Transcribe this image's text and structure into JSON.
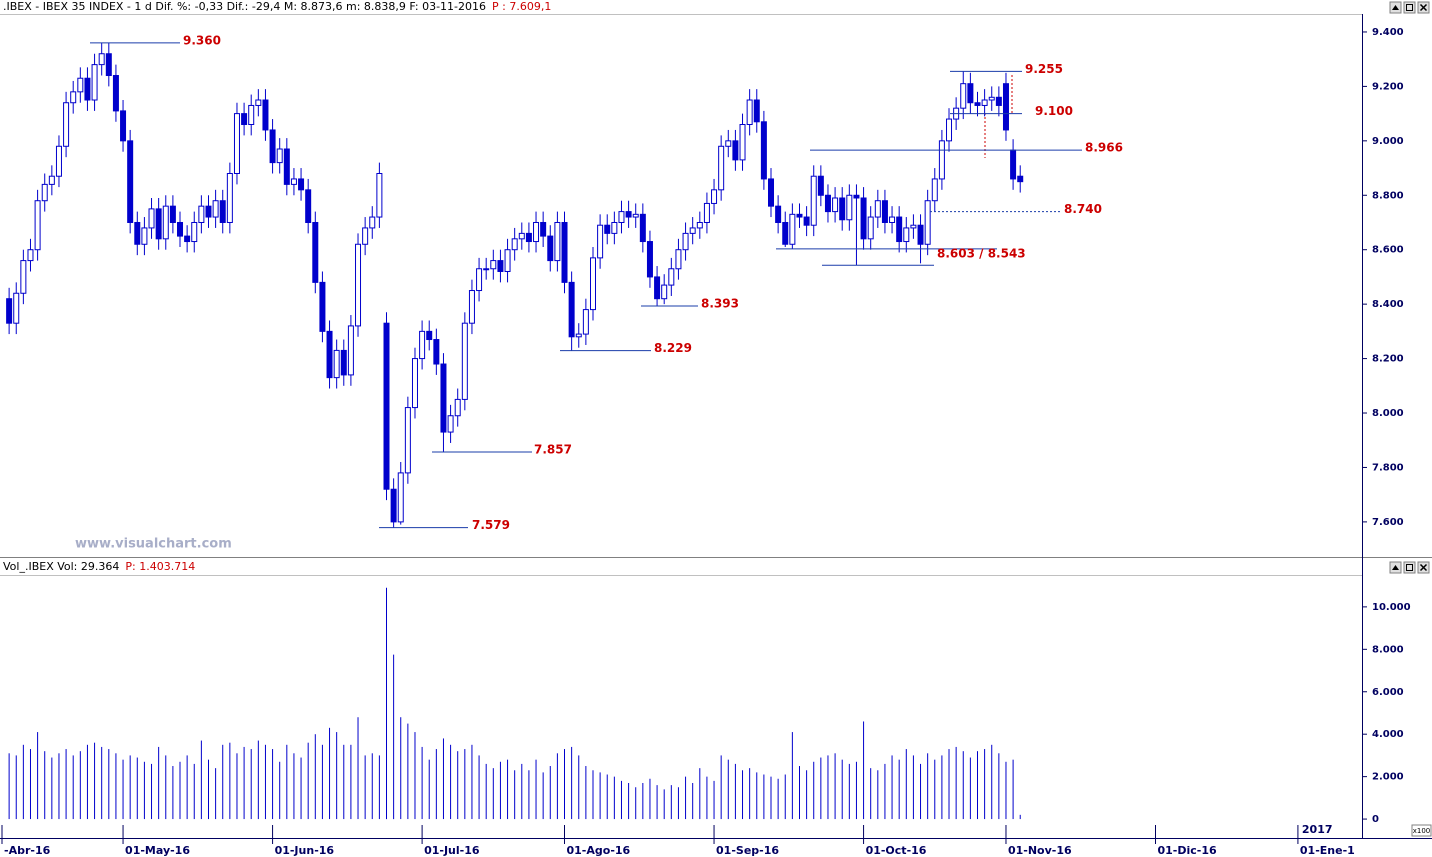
{
  "chart_data": [
    {
      "type": "candlestick",
      "title": ".IBEX - IBEX 35 INDEX - 1 d Dif. %: -0,33 Dif.: -29,4 M: 8.873,6 m: 8.838,9 F: 03-11-2016",
      "title_note": "P : 7.609,1",
      "watermark": "www.visualchart.com",
      "color": "#0000cc",
      "xlim": [
        -1,
        190
      ],
      "ylim": [
        7471,
        9466
      ],
      "yticks": [
        {
          "value": 7600,
          "label": "7.600"
        },
        {
          "value": 7800,
          "label": "7.800"
        },
        {
          "value": 8000,
          "label": "8.000"
        },
        {
          "value": 8200,
          "label": "8.200"
        },
        {
          "value": 8400,
          "label": "8.400"
        },
        {
          "value": 8600,
          "label": "8.600"
        },
        {
          "value": 8800,
          "label": "8.800"
        },
        {
          "value": 9000,
          "label": "9.000"
        },
        {
          "value": 9200,
          "label": "9.200"
        },
        {
          "value": 9400,
          "label": "9.400"
        }
      ],
      "open": [
        8420,
        8330,
        8440,
        8560,
        8600,
        8780,
        8840,
        8870,
        8980,
        9140,
        9180,
        9230,
        9150,
        9280,
        9320,
        9240,
        9110,
        9000,
        8700,
        8620,
        8680,
        8750,
        8640,
        8760,
        8700,
        8650,
        8630,
        8700,
        8760,
        8720,
        8780,
        8700,
        8880,
        9100,
        9060,
        9130,
        9150,
        9040,
        8920,
        8970,
        8840,
        8860,
        8820,
        8700,
        8480,
        8300,
        8130,
        8230,
        8140,
        8320,
        8620,
        8680,
        8720,
        8330,
        7720,
        7600,
        7780,
        8020,
        8200,
        8300,
        8270,
        8180,
        7930,
        7990,
        8050,
        8330,
        8450,
        8530,
        8530,
        8560,
        8520,
        8600,
        8640,
        8660,
        8630,
        8700,
        8650,
        8560,
        8700,
        8480,
        8280,
        8290,
        8380,
        8570,
        8690,
        8660,
        8700,
        8740,
        8720,
        8730,
        8630,
        8500,
        8420,
        8470,
        8530,
        8600,
        8660,
        8680,
        8700,
        8770,
        8820,
        8980,
        9000,
        8930,
        9060,
        9150,
        9070,
        8860,
        8760,
        8700,
        8620,
        8730,
        8720,
        8690,
        8870,
        8800,
        8740,
        8790,
        8710,
        8800,
        8790,
        8640,
        8720,
        8780,
        8700,
        8720,
        8630,
        8680,
        8690,
        8620,
        8780,
        8860,
        9000,
        9080,
        9120,
        9210,
        9140,
        9130,
        9150,
        9160,
        9210,
        8966,
        8870
      ],
      "high": [
        8460,
        8480,
        8600,
        8640,
        8820,
        8880,
        8910,
        9020,
        9180,
        9220,
        9270,
        9270,
        9320,
        9360,
        9360,
        9280,
        9150,
        9040,
        8740,
        8720,
        8790,
        8790,
        8800,
        8800,
        8740,
        8690,
        8740,
        8800,
        8800,
        8820,
        8820,
        8920,
        9140,
        9140,
        9170,
        9190,
        9190,
        9080,
        9010,
        9010,
        8900,
        8900,
        8860,
        8740,
        8520,
        8340,
        8270,
        8270,
        8360,
        8660,
        8720,
        8760,
        8920,
        8370,
        7760,
        7820,
        8060,
        8240,
        8340,
        8340,
        8310,
        8220,
        8030,
        8090,
        8370,
        8490,
        8570,
        8570,
        8600,
        8600,
        8640,
        8680,
        8700,
        8700,
        8740,
        8740,
        8690,
        8740,
        8740,
        8520,
        8330,
        8420,
        8610,
        8730,
        8730,
        8740,
        8780,
        8780,
        8770,
        8770,
        8670,
        8540,
        8510,
        8570,
        8640,
        8700,
        8720,
        8740,
        8810,
        8860,
        9020,
        9040,
        9040,
        9100,
        9190,
        9190,
        9110,
        8900,
        8800,
        8740,
        8770,
        8770,
        8760,
        8910,
        8910,
        8840,
        8830,
        8830,
        8840,
        8840,
        8830,
        8760,
        8820,
        8820,
        8760,
        8760,
        8720,
        8730,
        8730,
        8820,
        8900,
        9040,
        9120,
        9160,
        9255,
        9250,
        9180,
        9190,
        9200,
        9200,
        9250,
        9006,
        8910
      ],
      "low": [
        8290,
        8290,
        8400,
        8520,
        8560,
        8740,
        8800,
        8830,
        8940,
        9100,
        9140,
        9110,
        9110,
        9240,
        9200,
        9070,
        8960,
        8660,
        8580,
        8580,
        8640,
        8600,
        8600,
        8660,
        8610,
        8590,
        8590,
        8660,
        8680,
        8680,
        8660,
        8660,
        8840,
        9020,
        9020,
        9090,
        9000,
        8880,
        8880,
        8800,
        8800,
        8780,
        8660,
        8440,
        8260,
        8090,
        8090,
        8100,
        8100,
        8280,
        8580,
        8640,
        8680,
        7680,
        7579,
        7590,
        7740,
        7980,
        8160,
        8230,
        8140,
        7857,
        7890,
        7950,
        8010,
        8290,
        8410,
        8490,
        8490,
        8480,
        8480,
        8560,
        8600,
        8590,
        8590,
        8610,
        8520,
        8520,
        8440,
        8229,
        8240,
        8250,
        8340,
        8530,
        8620,
        8620,
        8660,
        8680,
        8680,
        8590,
        8460,
        8393,
        8400,
        8430,
        8490,
        8560,
        8620,
        8640,
        8660,
        8730,
        8780,
        8940,
        8890,
        8890,
        9020,
        9030,
        8820,
        8720,
        8660,
        8610,
        8603,
        8680,
        8650,
        8650,
        8760,
        8700,
        8700,
        8670,
        8670,
        8543,
        8600,
        8600,
        8680,
        8660,
        8660,
        8590,
        8590,
        8640,
        8550,
        8580,
        8740,
        8820,
        8960,
        9040,
        9080,
        9100,
        9090,
        9090,
        9110,
        9090,
        9000,
        8820,
        8810
      ],
      "close": [
        8330,
        8440,
        8560,
        8600,
        8780,
        8840,
        8870,
        8980,
        9140,
        9180,
        9230,
        9150,
        9280,
        9320,
        9240,
        9110,
        9000,
        8700,
        8620,
        8680,
        8750,
        8640,
        8760,
        8700,
        8650,
        8630,
        8700,
        8760,
        8720,
        8780,
        8700,
        8880,
        9100,
        9060,
        9130,
        9150,
        9040,
        8920,
        8970,
        8840,
        8860,
        8820,
        8700,
        8480,
        8300,
        8130,
        8230,
        8140,
        8320,
        8620,
        8680,
        8720,
        8880,
        7720,
        7600,
        7780,
        8020,
        8200,
        8300,
        8270,
        8180,
        7930,
        7990,
        8050,
        8330,
        8450,
        8530,
        8530,
        8560,
        8520,
        8600,
        8640,
        8660,
        8630,
        8700,
        8650,
        8560,
        8700,
        8480,
        8280,
        8290,
        8380,
        8570,
        8690,
        8660,
        8700,
        8740,
        8720,
        8730,
        8630,
        8500,
        8420,
        8470,
        8530,
        8600,
        8660,
        8680,
        8700,
        8770,
        8820,
        8980,
        9000,
        8930,
        9060,
        9150,
        9070,
        8860,
        8760,
        8700,
        8620,
        8730,
        8720,
        8690,
        8870,
        8800,
        8740,
        8790,
        8710,
        8800,
        8790,
        8640,
        8720,
        8780,
        8700,
        8720,
        8630,
        8680,
        8690,
        8620,
        8780,
        8860,
        9000,
        9080,
        9120,
        9210,
        9140,
        9130,
        9150,
        9160,
        9130,
        9040,
        8860,
        8850
      ],
      "annotations": [
        {
          "label": "9.360",
          "value": 9360
        },
        {
          "label": "9.255",
          "value": 9255
        },
        {
          "label": "9.100",
          "value": 9100
        },
        {
          "label": "8.966",
          "value": 8966
        },
        {
          "label": "8.740",
          "value": 8740
        },
        {
          "label": "8.603 / 8.543",
          "values": [
            8603,
            8543
          ]
        },
        {
          "label": "8.393",
          "value": 8393
        },
        {
          "label": "8.229",
          "value": 8229
        },
        {
          "label": "7.857",
          "value": 7857
        },
        {
          "label": "7.579",
          "value": 7579
        }
      ]
    },
    {
      "type": "volume",
      "title": "Vol_.IBEX Vol: 29.364",
      "title_note": "P: 1.403.714",
      "color": "#0000cc",
      "xlim": [
        -1,
        190
      ],
      "ylim": [
        -892,
        11455
      ],
      "yticks": [
        0,
        {
          "value": 2000,
          "label": "2.000"
        },
        {
          "value": 4000,
          "label": "4.000"
        },
        {
          "value": 6000,
          "label": "6.000"
        },
        {
          "value": 8000,
          "label": "8.000"
        },
        {
          "value": 10000,
          "label": "10.000"
        }
      ],
      "xticks": [
        {
          "value": -1,
          "label": "-Abr-16"
        },
        {
          "value": 16,
          "label": "01-May-16"
        },
        {
          "value": 37,
          "label": "01-Jun-16"
        },
        {
          "value": 58,
          "label": "01-Jul-16"
        },
        {
          "value": 78,
          "label": "01-Ago-16"
        },
        {
          "value": 99,
          "label": "01-Sep-16"
        },
        {
          "value": 120,
          "label": "01-Oct-16"
        },
        {
          "value": 140,
          "label": "01-Nov-16"
        },
        {
          "value": 161,
          "label": "01-Dic-16"
        },
        {
          "value": 181,
          "label": "01-Ene-1"
        }
      ],
      "year_label": "2017",
      "scale_note": "x100",
      "values": [
        3100,
        3000,
        3500,
        3300,
        4100,
        3200,
        2900,
        3100,
        3300,
        3000,
        3200,
        3500,
        3600,
        3400,
        3300,
        3100,
        2800,
        3000,
        2900,
        2700,
        2600,
        3400,
        3000,
        2500,
        2700,
        3000,
        2600,
        3700,
        2800,
        2400,
        3500,
        3600,
        3100,
        3400,
        3300,
        3700,
        3500,
        3300,
        2700,
        3500,
        3100,
        2900,
        3600,
        4000,
        3500,
        4300,
        4100,
        3500,
        3500,
        4800,
        3000,
        3100,
        3000,
        10900,
        7750,
        4800,
        4500,
        4100,
        3400,
        2800,
        3300,
        3800,
        3500,
        3200,
        3300,
        3500,
        3000,
        2600,
        2400,
        2700,
        2800,
        2300,
        2600,
        2300,
        2800,
        2200,
        2500,
        3100,
        3300,
        3400,
        3000,
        2500,
        2300,
        2200,
        2100,
        2000,
        1800,
        1700,
        1500,
        1700,
        1900,
        1600,
        1400,
        1600,
        1500,
        2000,
        1700,
        2400,
        2000,
        1800,
        3000,
        2800,
        2600,
        2300,
        2400,
        2200,
        2100,
        2000,
        1900,
        2100,
        4100,
        2500,
        2300,
        2700,
        2900,
        3000,
        3100,
        2800,
        2600,
        2700,
        4600,
        2400,
        2300,
        2600,
        3000,
        2800,
        3300,
        3000,
        2600,
        3100,
        2800,
        3000,
        3300,
        3400,
        3200,
        2900,
        3200,
        3300,
        3500,
        3100,
        2700,
        2800,
        200
      ]
    }
  ]
}
